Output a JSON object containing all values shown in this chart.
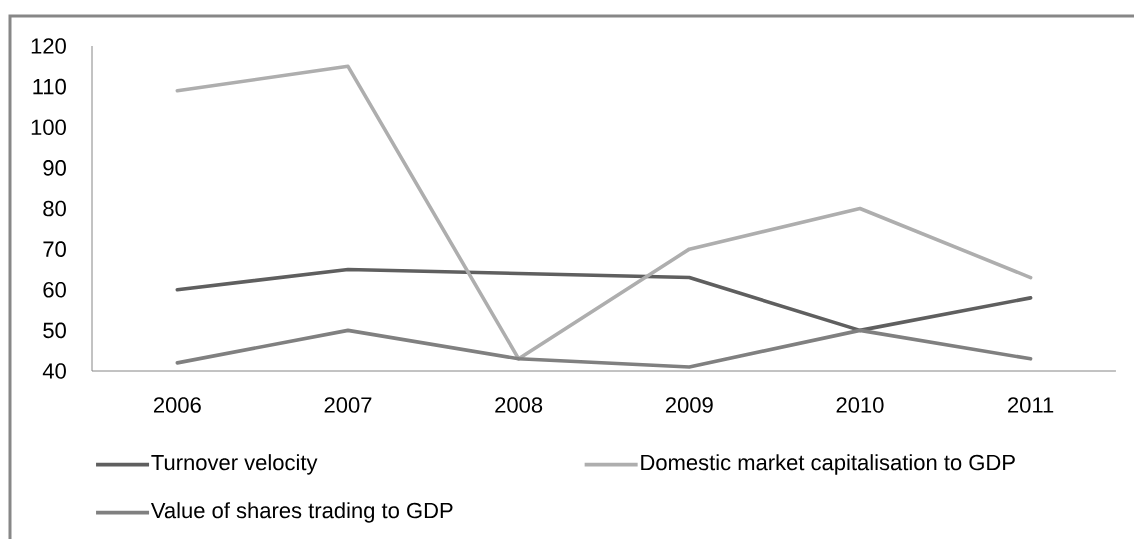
{
  "chart_data": {
    "type": "line",
    "categories": [
      "2006",
      "2007",
      "2008",
      "2009",
      "2010",
      "2011"
    ],
    "series": [
      {
        "name": "Turnover velocity",
        "color": "#5f5f5f",
        "values": [
          60,
          65,
          64,
          63,
          50,
          58
        ]
      },
      {
        "name": "Domestic market capitalisation to GDP",
        "color": "#aeaeae",
        "values": [
          109,
          115,
          43,
          70,
          80,
          63
        ]
      },
      {
        "name": "Value of shares trading to GDP",
        "color": "#808080",
        "values": [
          42,
          50,
          43,
          41,
          50,
          43
        ]
      }
    ],
    "ylim": [
      40,
      120
    ],
    "yticks": [
      40,
      50,
      60,
      70,
      80,
      90,
      100,
      110,
      120
    ],
    "legend": "bottom",
    "line_style": "solid"
  }
}
